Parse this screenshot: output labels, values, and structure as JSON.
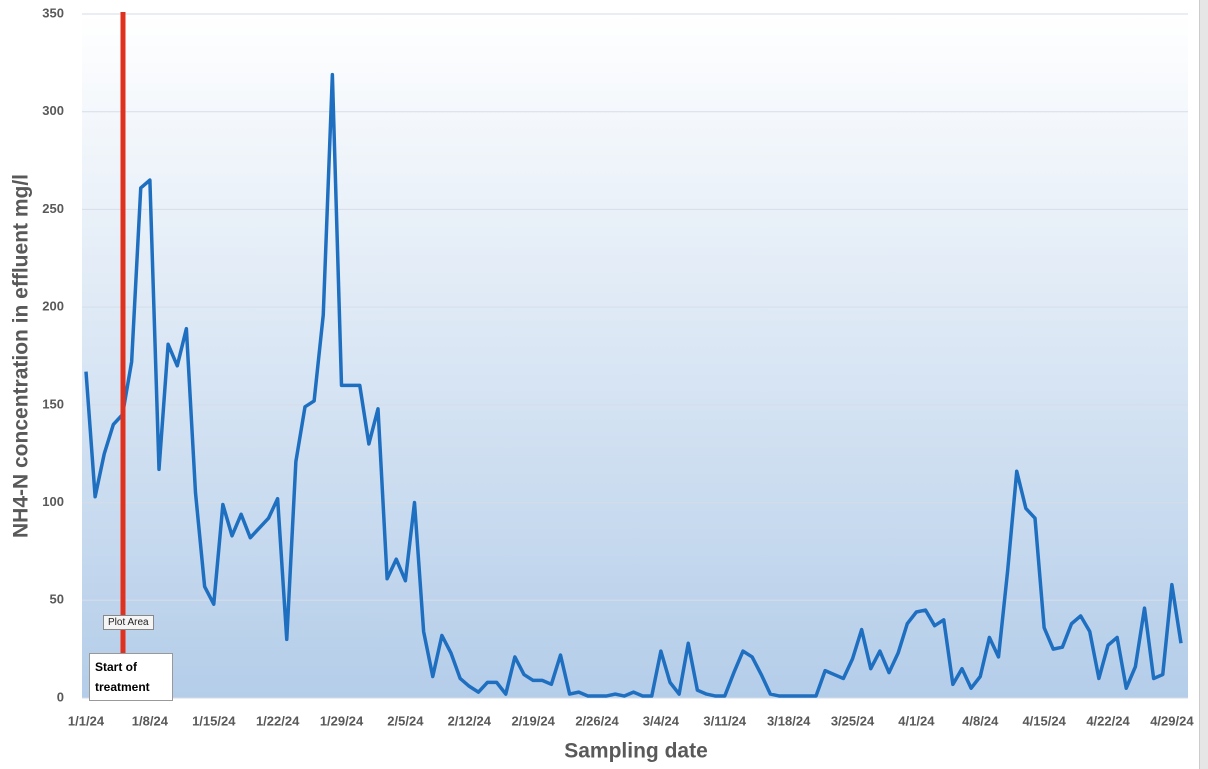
{
  "chart_data": {
    "type": "line",
    "xlabel": "Sampling date",
    "ylabel": "NH4-N concentration in effluent mg/l",
    "annotation": "Start of treatment",
    "tooltip": "Plot Area",
    "categories": [
      "1/1/24",
      null,
      null,
      null,
      null,
      null,
      null,
      "1/8/24",
      null,
      null,
      null,
      null,
      null,
      null,
      "1/15/24",
      null,
      null,
      null,
      null,
      null,
      null,
      "1/22/24",
      null,
      null,
      null,
      null,
      null,
      null,
      "1/29/24",
      null,
      null,
      null,
      null,
      null,
      null,
      "2/5/24",
      null,
      null,
      null,
      null,
      null,
      null,
      "2/12/24",
      null,
      null,
      null,
      null,
      null,
      null,
      "2/19/24",
      null,
      null,
      null,
      null,
      null,
      null,
      "2/26/24",
      null,
      null,
      null,
      null,
      null,
      null,
      "3/4/24",
      null,
      null,
      null,
      null,
      null,
      null,
      "3/11/24",
      null,
      null,
      null,
      null,
      null,
      null,
      "3/18/24",
      null,
      null,
      null,
      null,
      null,
      null,
      "3/25/24",
      null,
      null,
      null,
      null,
      null,
      null,
      "4/1/24",
      null,
      null,
      null,
      null,
      null,
      null,
      "4/8/24",
      null,
      null,
      null,
      null,
      null,
      null,
      "4/15/24",
      null,
      null,
      null,
      null,
      null,
      null,
      "4/22/24",
      null,
      null,
      null,
      null,
      null,
      null,
      "4/29/24",
      null
    ],
    "series": [
      {
        "name": "NH4-N",
        "color": "#1f6fc0",
        "values": [
          167,
          103,
          125,
          140,
          145,
          172,
          261,
          265,
          117,
          181,
          170,
          189,
          105,
          57,
          48,
          99,
          83,
          94,
          82,
          87,
          92,
          102,
          30,
          121,
          149,
          152,
          196,
          319,
          160,
          160,
          160,
          130,
          148,
          61,
          71,
          60,
          100,
          34,
          11,
          32,
          23,
          10,
          6,
          3,
          8,
          8,
          2,
          21,
          12,
          9,
          9,
          7,
          22,
          2,
          3,
          1,
          1,
          1,
          2,
          1,
          3,
          1,
          1,
          24,
          8,
          2,
          28,
          4,
          2,
          1,
          1,
          13,
          24,
          21,
          12,
          2,
          1,
          1,
          1,
          1,
          1,
          14,
          12,
          10,
          20,
          35,
          15,
          24,
          13,
          23,
          38,
          44,
          45,
          37,
          40,
          7,
          15,
          5,
          11,
          31,
          21,
          65,
          116,
          97,
          92,
          36,
          25,
          26,
          38,
          42,
          34,
          10,
          27,
          31,
          5,
          16,
          46,
          10,
          12,
          58,
          28
        ]
      }
    ],
    "ylim": [
      0,
      350
    ],
    "yticks": [
      0,
      50,
      100,
      150,
      200,
      250,
      300,
      350
    ],
    "grid": true
  }
}
